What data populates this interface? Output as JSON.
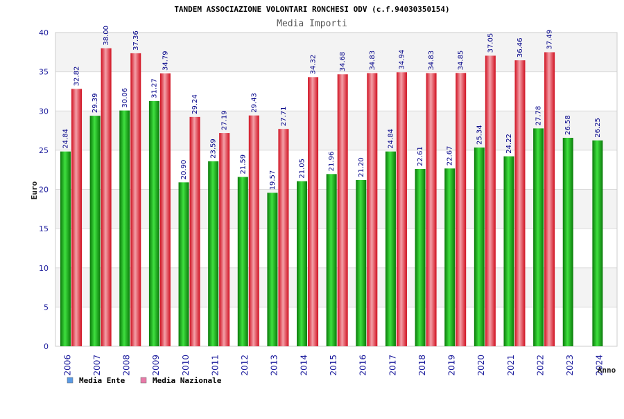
{
  "chart_data": {
    "type": "bar",
    "title": "TANDEM ASSOCIAZIONE VOLONTARI RONCHESI ODV (c.f.94030350154)",
    "subtitle": "Media Importi",
    "ylabel": "Euro",
    "xlabel": "Anno",
    "ylim": [
      0,
      40
    ],
    "yticks": [
      0,
      5,
      10,
      15,
      20,
      25,
      30,
      35,
      40
    ],
    "categories": [
      "2006",
      "2007",
      "2008",
      "2009",
      "2010",
      "2011",
      "2012",
      "2013",
      "2014",
      "2015",
      "2016",
      "2017",
      "2018",
      "2019",
      "2020",
      "2021",
      "2022",
      "2023",
      "2024"
    ],
    "series": [
      {
        "name": "Media Ente",
        "color": "#2fbf2f",
        "values": [
          24.84,
          29.39,
          30.06,
          31.27,
          20.9,
          23.59,
          21.59,
          19.57,
          21.05,
          21.96,
          21.2,
          24.84,
          22.61,
          22.67,
          25.34,
          24.22,
          27.78,
          26.58,
          26.25
        ],
        "labels": [
          "24.84",
          "29.39",
          "30.06",
          "31.27",
          "20.90",
          "23.59",
          "21.59",
          "19.57",
          "21.05",
          "21.96",
          "21.20",
          "24.84",
          "22.61",
          "22.67",
          "25.34",
          "24.22",
          "27.78",
          "26.58",
          "26.25"
        ]
      },
      {
        "name": "Media Nazionale",
        "color": "#e8404a",
        "values": [
          32.82,
          38.0,
          37.36,
          34.79,
          29.24,
          27.19,
          29.43,
          27.71,
          34.32,
          34.68,
          34.83,
          34.94,
          34.83,
          34.85,
          37.05,
          36.46,
          37.49,
          null,
          null
        ],
        "labels": [
          "32.82",
          "38.00",
          "37.36",
          "34.79",
          "29.24",
          "27.19",
          "29.43",
          "27.71",
          "34.32",
          "34.68",
          "34.83",
          "34.94",
          "34.83",
          "34.85",
          "37.05",
          "36.46",
          "37.49",
          "",
          ""
        ]
      }
    ],
    "grid": true,
    "legend_position": "bottom-left",
    "legend": [
      {
        "name": "Media Ente",
        "swatch_color": "#5b9be6"
      },
      {
        "name": "Media Nazionale",
        "swatch_color": "#e87aa8"
      }
    ]
  }
}
